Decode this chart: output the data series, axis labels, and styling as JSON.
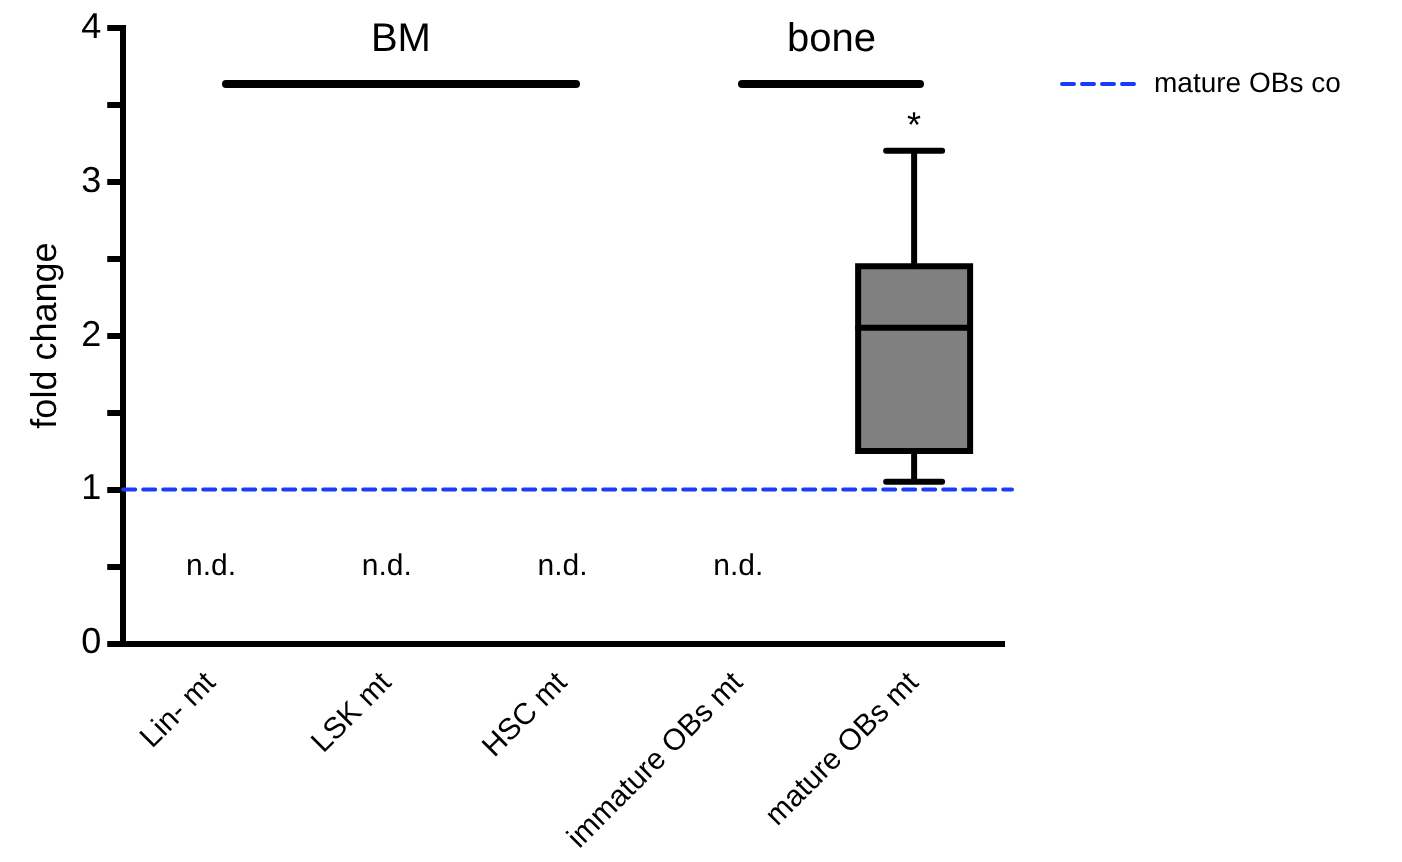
{
  "chart_data": {
    "type": "box",
    "ylabel": "fold change",
    "categories": [
      "Lin- mt",
      "LSK mt",
      "HSC mt",
      "immature OBs mt",
      "mature OBs mt"
    ],
    "boxes": [
      null,
      null,
      null,
      null,
      {
        "low": 1.05,
        "q1": 1.25,
        "median": 2.05,
        "q3": 2.45,
        "high": 3.2
      }
    ],
    "color": "#808080",
    "ylim": [
      0,
      4
    ],
    "yticks": [
      0,
      {
        "value": 0.5,
        "label": null
      },
      1,
      {
        "value": 1.5,
        "label": null
      },
      2,
      {
        "value": 2.5,
        "label": null
      },
      3,
      {
        "value": 3.5,
        "label": null
      },
      4
    ],
    "ref_lines": [
      {
        "axis": "y",
        "value": 1,
        "label": "mature OBs co",
        "color": "#1a3cff",
        "line_style": "dashed"
      }
    ],
    "annotations": [
      "BM",
      "bone",
      "*",
      "n.d.",
      "n.d.",
      "n.d.",
      "n.d."
    ],
    "legend": "top right",
    "grid": false
  }
}
